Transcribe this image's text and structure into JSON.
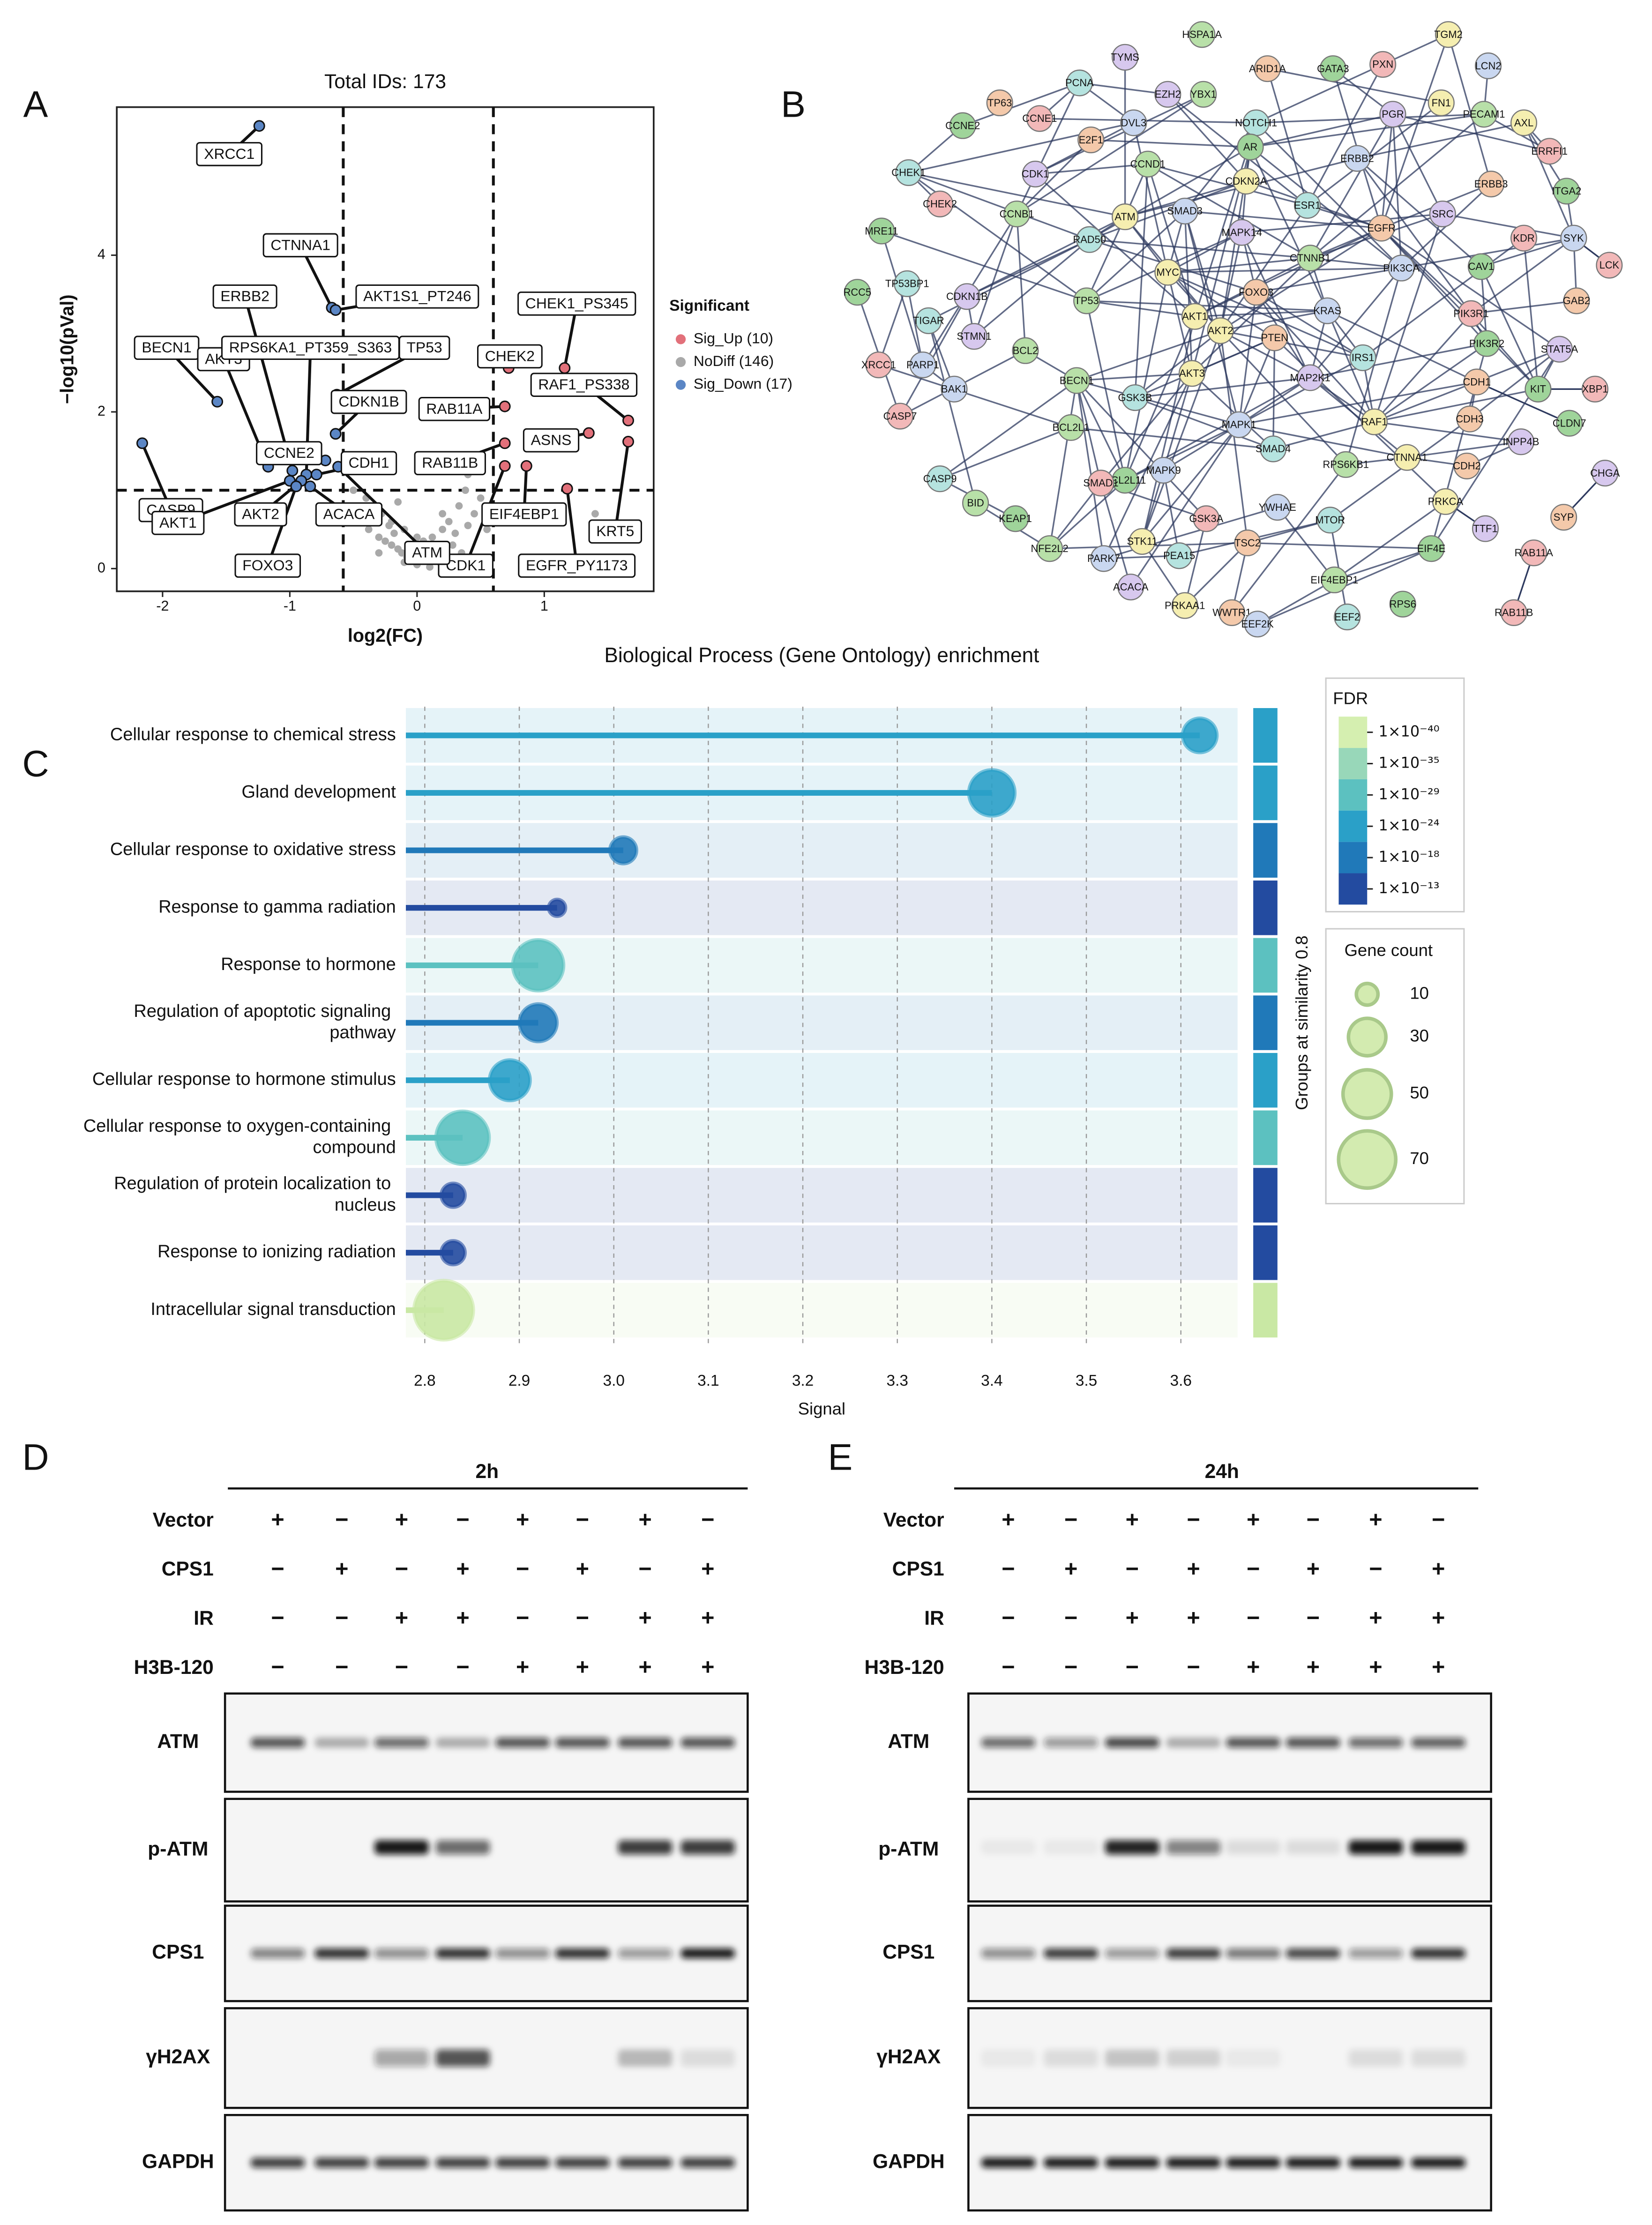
{
  "panel_labels": [
    "A",
    "B",
    "C",
    "D",
    "E"
  ],
  "chart_data": [
    {
      "type": "scatter",
      "title": "Total IDs: 173",
      "xlabel": "log2(FC)",
      "ylabel": "−log10(pVal)",
      "xlim": [
        -2.36,
        1.86
      ],
      "ylim": [
        -0.29,
        5.89
      ],
      "xticks": [
        -2,
        -1,
        0,
        1
      ],
      "yticks": [
        0,
        2,
        4
      ],
      "thresholds": {
        "x": [
          -0.58,
          0.6
        ],
        "y": 1.0
      },
      "legend_title": "Significant",
      "series": [
        {
          "name": "Sig_Up (10)",
          "color": "#e2707a",
          "labels": [
            "CHEK1_PS345",
            "CHEK2",
            "RAF1_PS338",
            "RAB11A",
            "ASNS",
            "RAB11B",
            "KRT5",
            "EIF4EBP1",
            "CDK1",
            "EGFR_PY1173"
          ],
          "x": [
            1.16,
            0.72,
            1.66,
            0.69,
            1.35,
            0.69,
            1.66,
            0.86,
            0.69,
            1.18
          ],
          "y": [
            2.56,
            2.56,
            1.89,
            2.07,
            1.73,
            1.6,
            1.62,
            1.31,
            1.31,
            1.02
          ]
        },
        {
          "name": "NoDiff (146)",
          "color": "#a9a9a9",
          "x": [
            -0.5,
            -0.45,
            -0.4,
            -0.38,
            -0.35,
            -0.3,
            -0.28,
            -0.25,
            -0.22,
            -0.2,
            -0.18,
            -0.15,
            -0.12,
            -0.1,
            -0.08,
            -0.05,
            -0.02,
            0,
            0.02,
            0.05,
            0.08,
            0.1,
            0.12,
            0.15,
            0.18,
            0.2,
            0.22,
            0.25,
            0.28,
            0.3,
            0.33,
            0.35,
            0.38,
            0.4,
            0.45,
            0.5,
            0.55,
            -0.3,
            -0.1,
            0.1,
            0.3,
            0.2,
            -0.2,
            0.0,
            1.4,
            0.4,
            0.35,
            -0.15
          ],
          "y": [
            1.0,
            0.75,
            0.9,
            0.5,
            0.65,
            0.4,
            0.7,
            0.35,
            0.55,
            0.3,
            0.45,
            0.25,
            0.2,
            0.5,
            0.15,
            0.3,
            0.1,
            0.05,
            0.2,
            0.35,
            0.12,
            0.25,
            0.4,
            0.3,
            0.08,
            0.5,
            0.15,
            0.6,
            0.3,
            0.45,
            0.8,
            0.2,
            1.0,
            0.55,
            0.7,
            0.9,
            0.5,
            0.2,
            0.08,
            0.02,
            0.1,
            0.7,
            0.6,
            0.4,
            0.7,
            1.2,
            1.3,
            0.85
          ]
        },
        {
          "name": "Sig_Down (17)",
          "color": "#5b86c5",
          "labels": [
            "XRCC1",
            "CTNNA1",
            "AKT1S1_PT246",
            "ERBB2",
            "BECN1",
            "AKT3",
            "RPS6KA1_PT359_S363",
            "TP53",
            "CDKN1B",
            "CCNE2",
            "CDH1",
            "CASP9",
            "AKT1",
            "AKT2",
            "FOXO3",
            "ACACA",
            "ATM"
          ],
          "x": [
            -1.24,
            -0.67,
            -0.64,
            -0.98,
            -1.57,
            -1.17,
            -0.87,
            -0.63,
            -0.64,
            -0.72,
            -0.79,
            -2.16,
            -1.0,
            -0.91,
            -0.95,
            -0.84,
            -0.62
          ],
          "y": [
            5.65,
            3.33,
            3.3,
            1.25,
            2.13,
            1.3,
            1.2,
            2.22,
            1.72,
            1.38,
            1.2,
            1.6,
            1.12,
            1.12,
            1.05,
            1.05,
            1.3
          ]
        }
      ]
    },
    {
      "type": "lollipop",
      "title": "Biological Process (Gene Ontology) enrichment",
      "xlabel": "Signal",
      "xlim": [
        2.78,
        3.66
      ],
      "xticks": [
        2.8,
        2.9,
        {
          "value": 3,
          "label": "3.0"
        },
        3.1,
        3.2,
        3.3,
        3.4,
        3.5,
        3.6
      ],
      "categories": [
        "Cellular response to chemical stress",
        "Gland development",
        "Cellular response to oxidative stress",
        "Response to gamma radiation",
        "Response to hormone",
        "Regulation of apoptotic signaling pathway",
        "Cellular response to hormone stimulus",
        "Cellular response to oxygen-containing compound",
        "Regulation of protein localization to nucleus",
        "Response to ionizing radiation",
        "Intracellular signal transduction"
      ],
      "values": [
        3.62,
        3.4,
        3.01,
        2.94,
        2.92,
        2.92,
        2.89,
        2.84,
        2.83,
        2.83,
        2.82
      ],
      "gene_counts": [
        25,
        45,
        15,
        6,
        55,
        30,
        35,
        60,
        12,
        12,
        75
      ],
      "colors": [
        "#2aa0c8",
        "#2aa0c8",
        "#2079b9",
        "#234ba0",
        "#5cc1c0",
        "#2079b9",
        "#2aa0c8",
        "#5cc1c0",
        "#234ba0",
        "#234ba0",
        "#c9e8a4"
      ],
      "side_label": "Groups at similarity 0.8",
      "fdr_title": "FDR",
      "fdr_legend": [
        {
          "label": "1×10⁻⁴⁰",
          "color": "#d5efb0"
        },
        {
          "label": "1×10⁻³⁵",
          "color": "#98d7b9"
        },
        {
          "label": "1×10⁻²⁹",
          "color": "#5cc1c0"
        },
        {
          "label": "1×10⁻²⁴",
          "color": "#2aa0c8"
        },
        {
          "label": "1×10⁻¹⁸",
          "color": "#2079b9"
        },
        {
          "label": "1×10⁻¹³",
          "color": "#234ba0"
        }
      ],
      "size_title": "Gene count",
      "size_legend": [
        10,
        30,
        50,
        70
      ]
    }
  ],
  "network": {
    "nodes": [
      "TYMS",
      "HSPA1A",
      "TGM2",
      "ARID1A",
      "GATA3",
      "PXN",
      "LCN2",
      "PCNA",
      "EZH2",
      "YBX1",
      "FN1",
      "TP63",
      "CCNE2",
      "CCNE1",
      "DVL3",
      "NOTCH1",
      "PGR",
      "PECAM1",
      "AXL",
      "E2F1",
      "AR",
      "ERRFI1",
      "ERBB2",
      "CHEK1",
      "CDK1",
      "CCND1",
      "CDKN2A",
      "ERBB3",
      "ITGA2",
      "CHEK2",
      "SMAD3",
      "ESR1",
      "SRC",
      "CCNB1",
      "ATM",
      "EGFR",
      "MRE11",
      "KDR",
      "SYK",
      "RAD50",
      "MAPK14",
      "CTNNB1",
      "MYC",
      "FOXO3",
      "CAV1",
      "LCK",
      "PIK3CA",
      "TP53BP1",
      "CDKN1B",
      "TP53",
      "AKT1",
      "GAB2",
      "RCC5",
      "PIK3R1",
      "KRAS",
      "TIGAR",
      "STMN1",
      "BCL2",
      "AKT2",
      "PTEN",
      "PIK3R2",
      "XRCC1",
      "PARP1",
      "IRS1",
      "STAT5A",
      "BECN1",
      "AKT3",
      "CDH1",
      "KIT",
      "XBP1",
      "BAK1",
      "GSK3B",
      "MAP2K1",
      "BCL2L1",
      "RAF1",
      "CDH3",
      "CLDN7",
      "CASP7",
      "MAPK1",
      "SMAD4",
      "INPP4B",
      "RPS6KB1",
      "CTNNA1",
      "CDH2",
      "BCL2L11",
      "SMAD1",
      "MAPK9",
      "CASP9",
      "CHGA",
      "BID",
      "PRKCA",
      "SYP",
      "KEAP1",
      "GSK3A",
      "YWHAE",
      "MTOR",
      "TTF1",
      "NFE2L2",
      "STK11",
      "TSC2",
      "EIF4E",
      "RAB11A",
      "PARK7",
      "PEA15",
      "ACACA",
      "EIF4EBP1",
      "PRKAA1",
      "WWTR1",
      "RPS6",
      "RAB11B",
      "EEF2K",
      "EEF2"
    ]
  },
  "blots": [
    {
      "time": "2h",
      "conditions": [
        {
          "name": "Vector",
          "signs": [
            "+",
            "−",
            "+",
            "−",
            "+",
            "−",
            "+",
            "−"
          ]
        },
        {
          "name": "CPS1",
          "signs": [
            "−",
            "+",
            "−",
            "+",
            "−",
            "+",
            "−",
            "+"
          ]
        },
        {
          "name": "IR",
          "signs": [
            "−",
            "−",
            "+",
            "+",
            "−",
            "−",
            "+",
            "+"
          ]
        },
        {
          "name": "H3B-120",
          "signs": [
            "−",
            "−",
            "−",
            "−",
            "+",
            "+",
            "+",
            "+"
          ]
        }
      ],
      "rows": [
        "ATM",
        "p-ATM",
        "CPS1",
        "γH2AX",
        "GAPDH"
      ]
    },
    {
      "time": "24h",
      "conditions": [
        {
          "name": "Vector",
          "signs": [
            "+",
            "−",
            "+",
            "−",
            "+",
            "−",
            "+",
            "−"
          ]
        },
        {
          "name": "CPS1",
          "signs": [
            "−",
            "+",
            "−",
            "+",
            "−",
            "+",
            "−",
            "+"
          ]
        },
        {
          "name": "IR",
          "signs": [
            "−",
            "−",
            "+",
            "+",
            "−",
            "−",
            "+",
            "+"
          ]
        },
        {
          "name": "H3B-120",
          "signs": [
            "−",
            "−",
            "−",
            "−",
            "+",
            "+",
            "+",
            "+"
          ]
        }
      ],
      "rows": [
        "ATM",
        "p-ATM",
        "CPS1",
        "γH2AX",
        "GAPDH"
      ]
    }
  ]
}
